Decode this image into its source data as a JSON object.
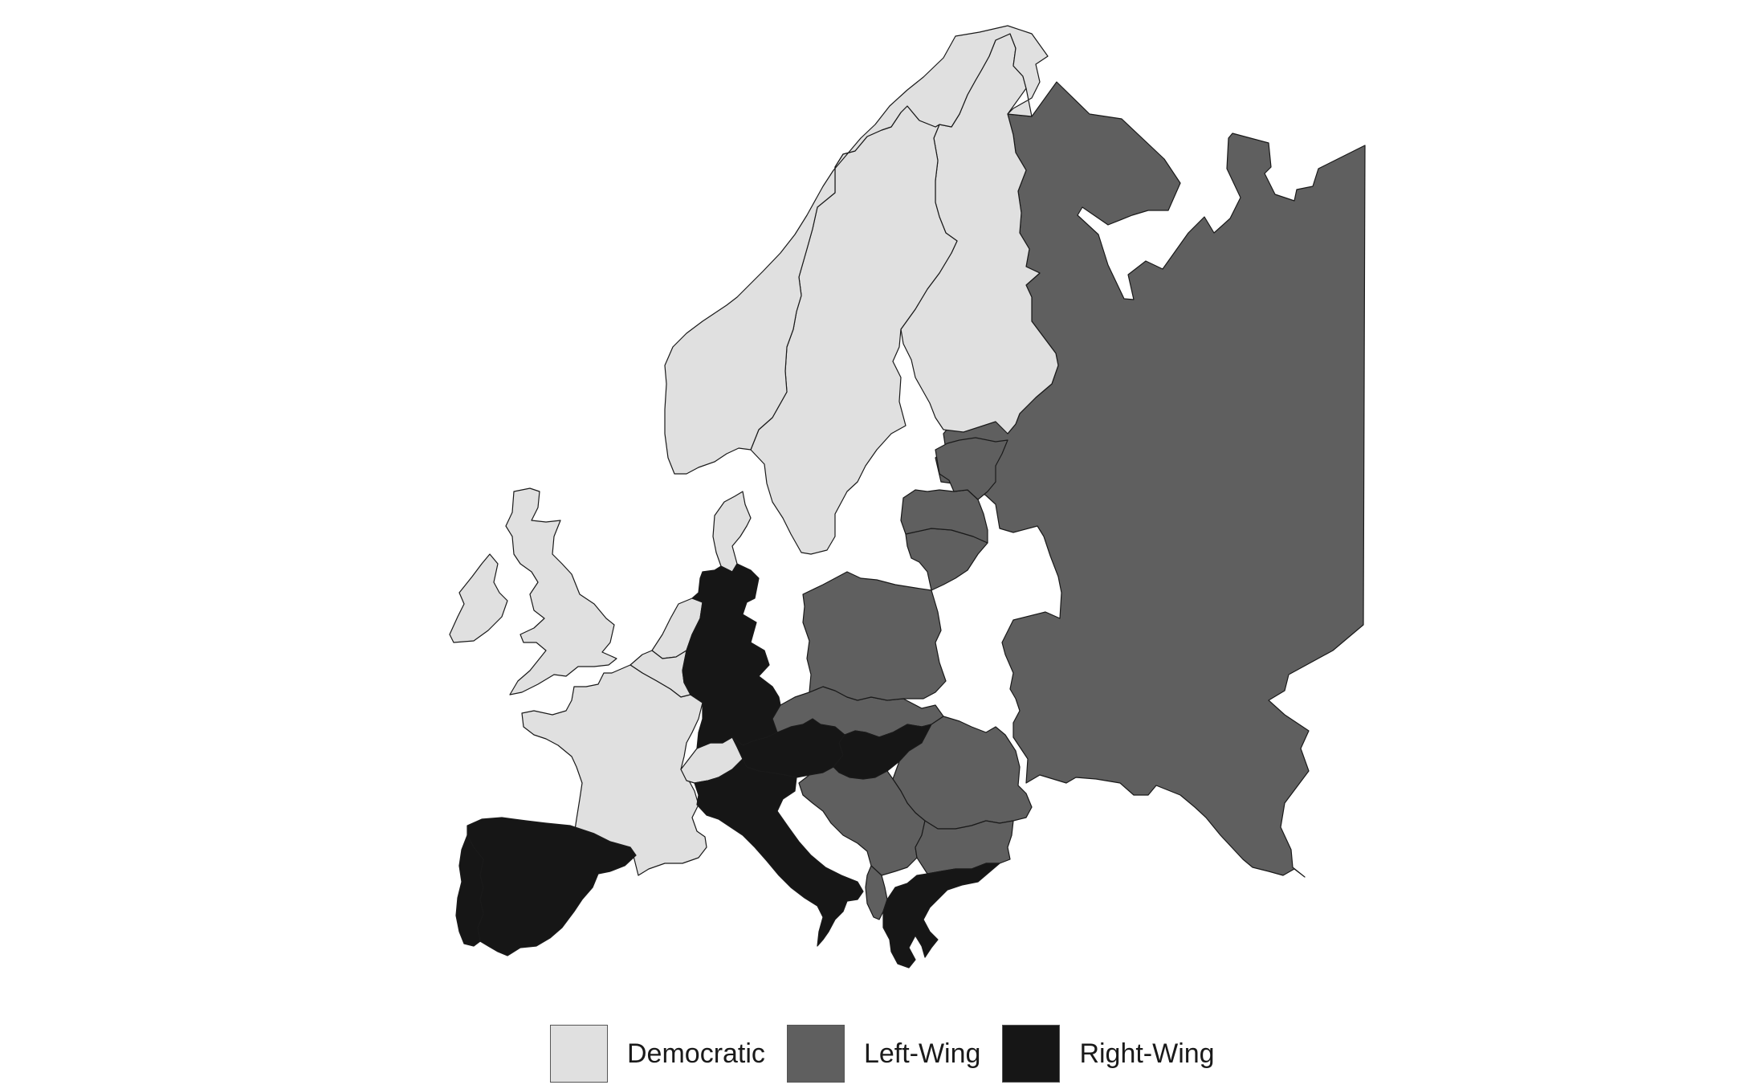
{
  "colors": {
    "democratic": "#e0e0e0",
    "left_wing": "#5f5f5f",
    "right_wing": "#161616",
    "border": "#1a1a1a",
    "background": "#ffffff"
  },
  "legend": {
    "items": [
      {
        "label": "Democratic",
        "category": "democratic",
        "color": "#e0e0e0"
      },
      {
        "label": "Left-Wing",
        "category": "left_wing",
        "color": "#5f5f5f"
      },
      {
        "label": "Right-Wing",
        "category": "right_wing",
        "color": "#161616"
      }
    ]
  },
  "regions": [
    {
      "name": "norway",
      "category": "democratic"
    },
    {
      "name": "sweden",
      "category": "democratic"
    },
    {
      "name": "finland",
      "category": "democratic"
    },
    {
      "name": "denmark",
      "category": "democratic"
    },
    {
      "name": "ireland",
      "category": "democratic"
    },
    {
      "name": "great-britain",
      "category": "democratic"
    },
    {
      "name": "netherlands",
      "category": "democratic"
    },
    {
      "name": "belgium",
      "category": "democratic"
    },
    {
      "name": "france",
      "category": "democratic"
    },
    {
      "name": "switzerland",
      "category": "democratic"
    },
    {
      "name": "soviet-union",
      "category": "left_wing"
    },
    {
      "name": "estonia",
      "category": "left_wing"
    },
    {
      "name": "latvia",
      "category": "left_wing"
    },
    {
      "name": "lithuania",
      "category": "left_wing"
    },
    {
      "name": "poland",
      "category": "left_wing"
    },
    {
      "name": "czechoslovakia",
      "category": "left_wing"
    },
    {
      "name": "romania",
      "category": "left_wing"
    },
    {
      "name": "yugoslavia",
      "category": "left_wing"
    },
    {
      "name": "bulgaria",
      "category": "left_wing"
    },
    {
      "name": "albania",
      "category": "left_wing"
    },
    {
      "name": "germany",
      "category": "right_wing"
    },
    {
      "name": "austria",
      "category": "right_wing"
    },
    {
      "name": "hungary",
      "category": "right_wing"
    },
    {
      "name": "italy",
      "category": "right_wing"
    },
    {
      "name": "spain",
      "category": "right_wing"
    },
    {
      "name": "portugal",
      "category": "right_wing"
    },
    {
      "name": "greece",
      "category": "right_wing"
    }
  ]
}
